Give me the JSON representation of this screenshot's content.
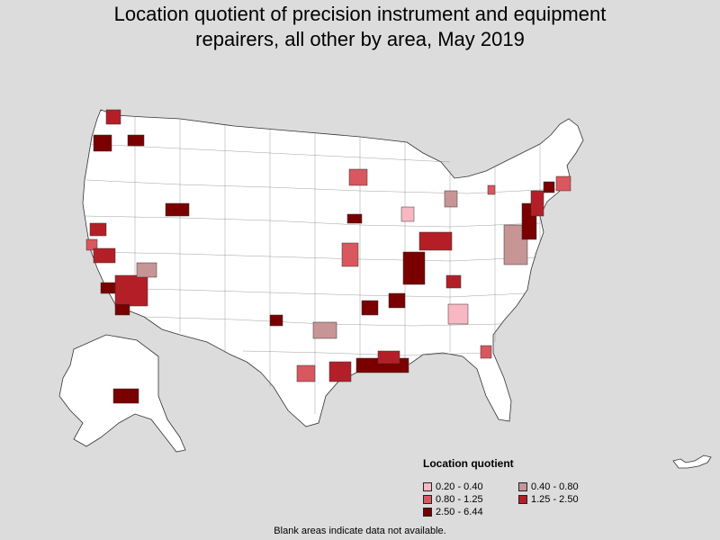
{
  "title_line1": "Location quotient of precision instrument and equipment",
  "title_line2": "repairers, all other by area, May 2019",
  "legend": {
    "title": "Location quotient",
    "items": [
      {
        "label": "0.20 - 0.40",
        "color": "#f7b7c3"
      },
      {
        "label": "0.40 - 0.80",
        "color": "#c79595"
      },
      {
        "label": "0.80 - 1.25",
        "color": "#d9575e"
      },
      {
        "label": "1.25 - 2.50",
        "color": "#b41f27"
      },
      {
        "label": "2.50 - 6.44",
        "color": "#7a0000"
      }
    ]
  },
  "footnote": "Blank areas indicate data not available.",
  "colors": {
    "background": "#dcdcdc",
    "no_data": "#ffffff",
    "border": "#333333"
  },
  "highlighted_areas": [
    {
      "region": "western-washington",
      "bin": "1.25 - 2.50"
    },
    {
      "region": "portland",
      "bin": "2.50 - 6.44"
    },
    {
      "region": "eastern-washington",
      "bin": "2.50 - 6.44"
    },
    {
      "region": "northern-california",
      "bin": "1.25 - 2.50"
    },
    {
      "region": "bay-area",
      "bin": "0.80 - 1.25"
    },
    {
      "region": "central-california",
      "bin": "1.25 - 2.50"
    },
    {
      "region": "southern-california",
      "bin": "1.25 - 2.50"
    },
    {
      "region": "los-angeles",
      "bin": "2.50 - 6.44"
    },
    {
      "region": "san-diego",
      "bin": "2.50 - 6.44"
    },
    {
      "region": "las-vegas",
      "bin": "0.40 - 0.80"
    },
    {
      "region": "salt-lake",
      "bin": "2.50 - 6.44"
    },
    {
      "region": "new-mexico",
      "bin": "2.50 - 6.44"
    },
    {
      "region": "minnesota",
      "bin": "0.80 - 1.25"
    },
    {
      "region": "iowa",
      "bin": "2.50 - 6.44"
    },
    {
      "region": "kansas",
      "bin": "0.80 - 1.25"
    },
    {
      "region": "chicago",
      "bin": "0.20 - 0.40"
    },
    {
      "region": "oklahoma",
      "bin": "0.40 - 0.80"
    },
    {
      "region": "dallas",
      "bin": "0.80 - 1.25"
    },
    {
      "region": "houston",
      "bin": "1.25 - 2.50"
    },
    {
      "region": "louisiana",
      "bin": "2.50 - 6.44"
    },
    {
      "region": "mississippi",
      "bin": "1.25 - 2.50"
    },
    {
      "region": "arkansas",
      "bin": "2.50 - 6.44"
    },
    {
      "region": "tennessee",
      "bin": "2.50 - 6.44"
    },
    {
      "region": "kentucky",
      "bin": "2.50 - 6.44"
    },
    {
      "region": "indiana",
      "bin": "1.25 - 2.50"
    },
    {
      "region": "michigan",
      "bin": "0.40 - 0.80"
    },
    {
      "region": "georgia",
      "bin": "0.20 - 0.40"
    },
    {
      "region": "florida",
      "bin": "0.80 - 1.25"
    },
    {
      "region": "virginia",
      "bin": "1.25 - 2.50"
    },
    {
      "region": "pennsylvania",
      "bin": "0.40 - 0.80"
    },
    {
      "region": "new-jersey",
      "bin": "2.50 - 6.44"
    },
    {
      "region": "new-york",
      "bin": "1.25 - 2.50"
    },
    {
      "region": "connecticut",
      "bin": "2.50 - 6.44"
    },
    {
      "region": "massachusetts",
      "bin": "0.80 - 1.25"
    },
    {
      "region": "upstate-new-york",
      "bin": "0.80 - 1.25"
    },
    {
      "region": "alaska",
      "bin": "2.50 - 6.44"
    }
  ]
}
